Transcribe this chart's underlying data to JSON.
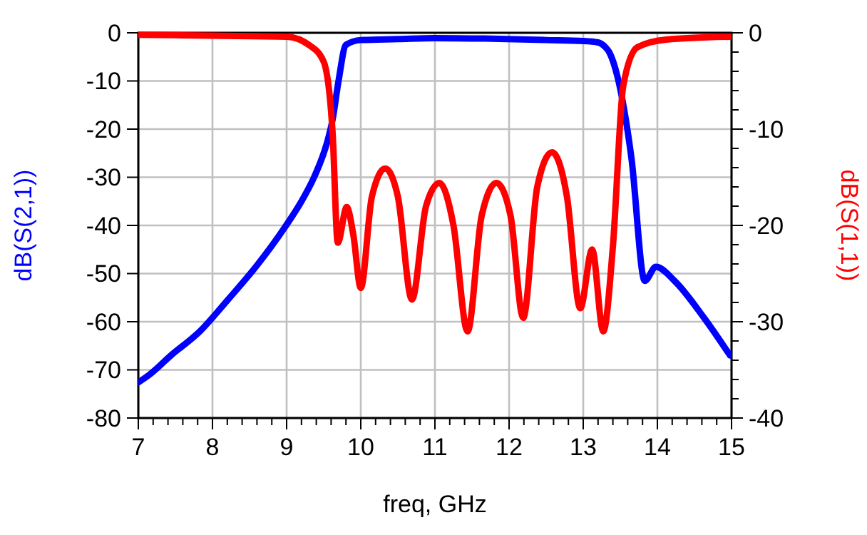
{
  "chart_data": {
    "type": "line",
    "xlabel": "freq, GHz",
    "ylabel": "dB(S(2,1))",
    "y2label": "dB(S(1,1))",
    "xlim": [
      7,
      15
    ],
    "xticks": [
      7,
      8,
      9,
      10,
      11,
      12,
      13,
      14,
      15
    ],
    "ylim": [
      -80,
      0
    ],
    "yticks": [
      -80,
      -70,
      -60,
      -50,
      -40,
      -30,
      -20,
      -10,
      0
    ],
    "y2lim": [
      -40,
      0
    ],
    "y2ticks": [
      -40,
      -30,
      -20,
      -10,
      0
    ],
    "grid": true,
    "line_style": "solid",
    "marker": "none",
    "series": [
      {
        "color": "#0000ff",
        "axis": "y",
        "x": [
          7,
          7.15,
          7.44,
          7.83,
          8.21,
          8.6,
          8.98,
          9.2,
          9.37,
          9.5,
          9.56,
          9.62,
          9.7,
          9.8,
          10,
          10.5,
          11,
          11.67,
          12.5,
          13,
          13.2,
          13.3,
          13.35,
          13.46,
          13.65,
          13.83,
          13.98,
          14.23,
          14.62,
          14.98
        ],
        "values": [
          -72.6,
          -71,
          -67,
          -62,
          -55.4,
          -48.3,
          -40.3,
          -35,
          -30,
          -25,
          -22,
          -18,
          -10,
          -2.5,
          -1.5,
          -1.3,
          -1.1,
          -1.2,
          -1.5,
          -1.7,
          -2,
          -3,
          -4,
          -9,
          -26,
          -51.5,
          -48.6,
          -51.5,
          -59,
          -67
        ]
      },
      {
        "color": "#ff0000",
        "axis": "y2",
        "x": [
          7,
          8,
          9,
          9.31,
          9.5,
          9.62,
          9.69,
          9.81,
          9.9,
          10,
          10.15,
          10.33,
          10.5,
          10.69,
          10.88,
          11.06,
          11.25,
          11.44,
          11.63,
          11.83,
          12.02,
          12.19,
          12.38,
          12.58,
          12.78,
          12.96,
          13.12,
          13.27,
          13.4,
          13.54,
          13.73,
          14.12,
          15
        ],
        "values": [
          -0.2,
          -0.3,
          -0.4,
          -1.3,
          -3,
          -10.4,
          -21.8,
          -18.1,
          -21,
          -26.5,
          -17,
          -14.1,
          -17,
          -27.7,
          -18,
          -15.6,
          -20,
          -31,
          -19,
          -15.6,
          -19,
          -29.6,
          -16,
          -12.4,
          -17,
          -28.6,
          -22.5,
          -31,
          -22.2,
          -5.5,
          -1.5,
          -0.7,
          -0.4
        ]
      }
    ]
  }
}
